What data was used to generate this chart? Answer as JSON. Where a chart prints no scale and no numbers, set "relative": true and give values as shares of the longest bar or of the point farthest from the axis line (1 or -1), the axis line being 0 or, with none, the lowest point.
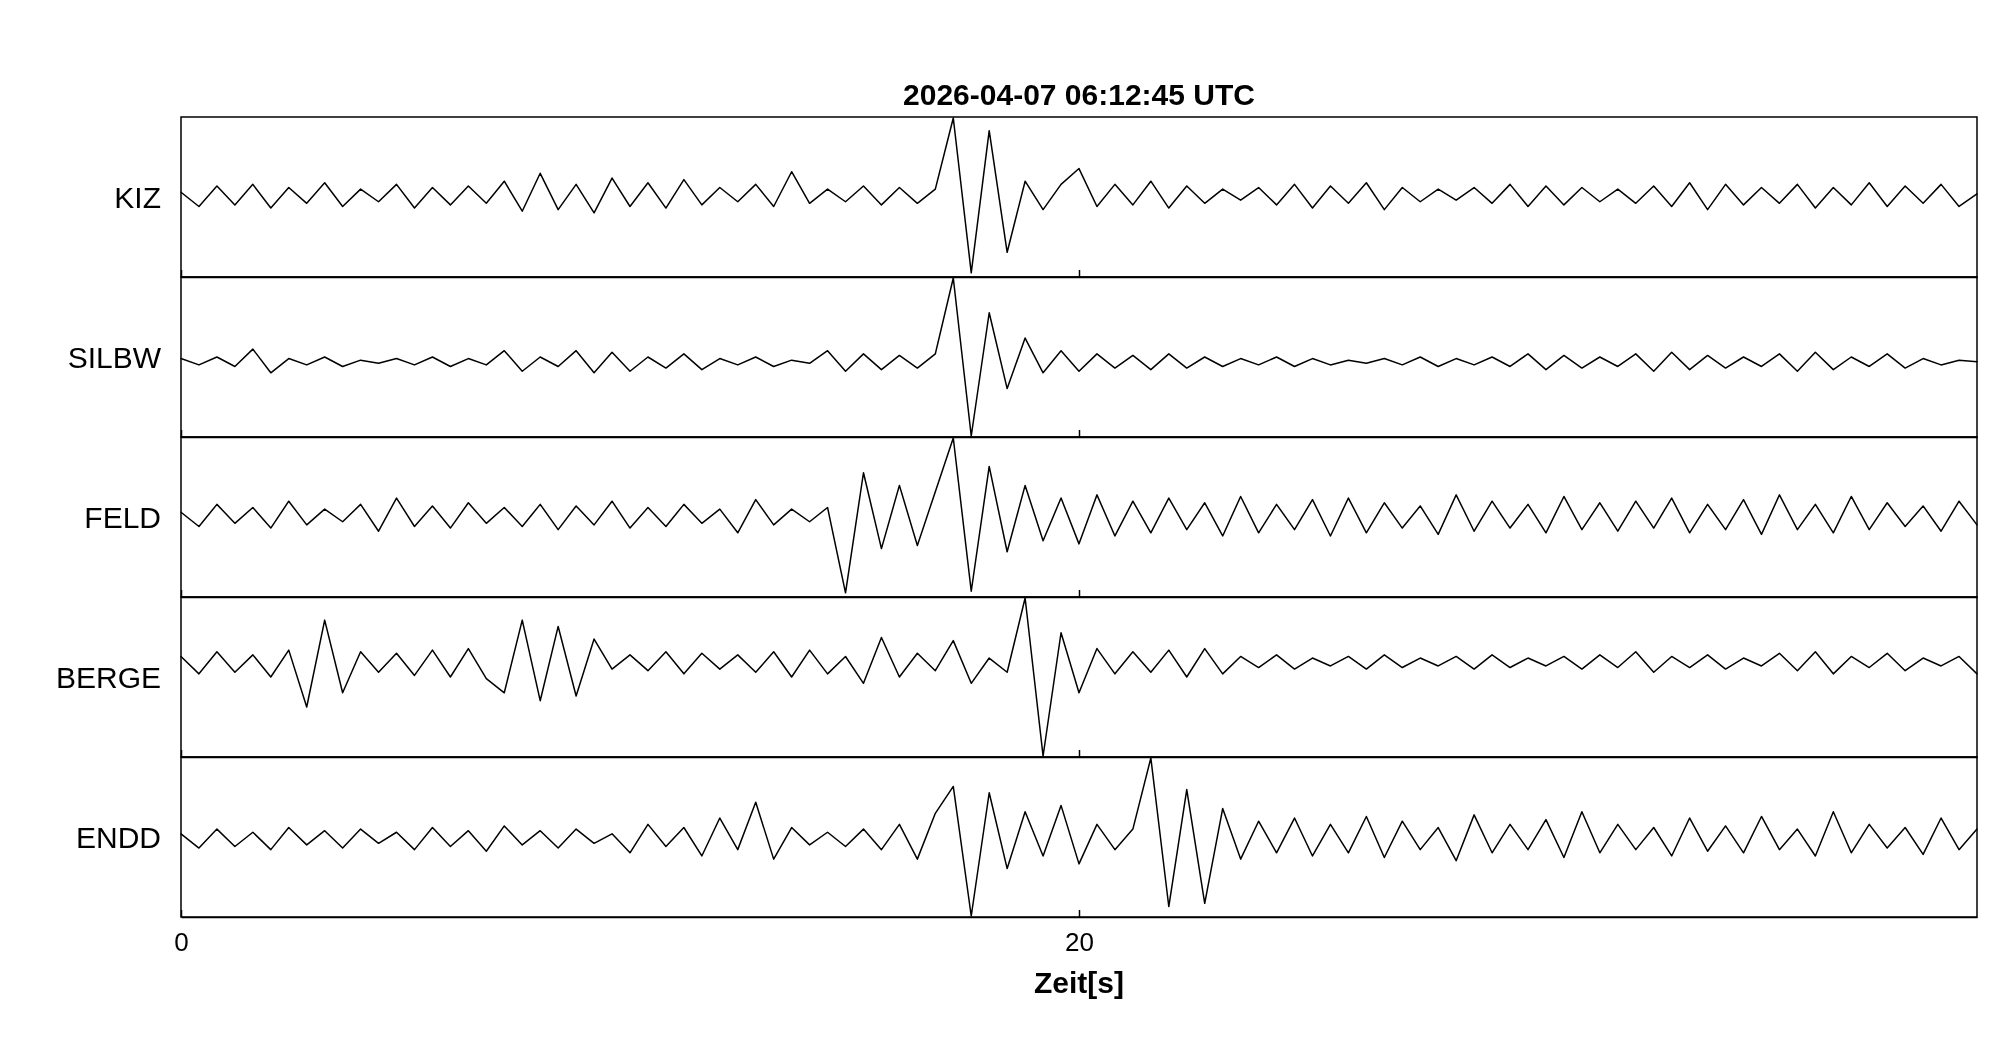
{
  "chart_data": [
    {
      "type": "line",
      "title": "2026-04-07  06:12:45 UTC",
      "ylabel": "KIZ",
      "relative": true,
      "color": "#000000",
      "xlim": [
        0,
        40
      ],
      "tick_labels": false,
      "x": [
        0,
        0.4,
        0.8,
        1.2,
        1.6,
        2,
        2.4,
        2.8,
        3.2,
        3.6,
        4,
        4.4,
        4.8,
        5.2,
        5.6,
        6,
        6.4,
        6.8,
        7.2,
        7.6,
        8,
        8.4,
        8.8,
        9.2,
        9.6,
        10,
        10.4,
        10.8,
        11.2,
        11.6,
        12,
        12.4,
        12.8,
        13.2,
        13.6,
        14,
        14.4,
        14.8,
        15.2,
        15.6,
        16,
        16.4,
        16.8,
        17.2,
        17.6,
        18,
        18.4,
        18.8,
        19.2,
        19.6,
        20,
        20.4,
        20.8,
        21.2,
        21.6,
        22,
        22.4,
        22.8,
        23.2,
        23.6,
        24,
        24.4,
        24.8,
        25.2,
        25.6,
        26,
        26.4,
        26.8,
        27.2,
        27.6,
        28,
        28.4,
        28.8,
        29.2,
        29.6,
        30,
        30.4,
        30.8,
        31.2,
        31.6,
        32,
        32.4,
        32.8,
        33.2,
        33.6,
        34,
        34.4,
        34.8,
        35.2,
        35.6,
        36,
        36.4,
        36.8,
        37.2,
        37.6,
        38,
        38.4,
        38.8,
        39.2,
        39.6,
        40
      ],
      "values": [
        0.53,
        0.44,
        0.57,
        0.45,
        0.58,
        0.43,
        0.56,
        0.46,
        0.59,
        0.44,
        0.55,
        0.47,
        0.58,
        0.43,
        0.56,
        0.45,
        0.57,
        0.46,
        0.6,
        0.41,
        0.65,
        0.42,
        0.58,
        0.4,
        0.62,
        0.44,
        0.59,
        0.43,
        0.61,
        0.45,
        0.56,
        0.47,
        0.58,
        0.44,
        0.66,
        0.46,
        0.55,
        0.47,
        0.57,
        0.45,
        0.56,
        0.46,
        0.55,
        1.0,
        0.02,
        0.92,
        0.15,
        0.6,
        0.42,
        0.58,
        0.68,
        0.44,
        0.58,
        0.45,
        0.6,
        0.43,
        0.57,
        0.46,
        0.55,
        0.48,
        0.56,
        0.45,
        0.58,
        0.43,
        0.57,
        0.46,
        0.59,
        0.42,
        0.56,
        0.47,
        0.55,
        0.48,
        0.56,
        0.46,
        0.58,
        0.44,
        0.57,
        0.45,
        0.56,
        0.47,
        0.55,
        0.46,
        0.57,
        0.44,
        0.59,
        0.42,
        0.58,
        0.45,
        0.56,
        0.46,
        0.58,
        0.43,
        0.56,
        0.45,
        0.59,
        0.44,
        0.57,
        0.46,
        0.58,
        0.44,
        0.52
      ]
    },
    {
      "type": "line",
      "ylabel": "SILBW",
      "relative": true,
      "color": "#000000",
      "xlim": [
        0,
        40
      ],
      "tick_labels": false,
      "x": [
        0,
        0.4,
        0.8,
        1.2,
        1.6,
        2,
        2.4,
        2.8,
        3.2,
        3.6,
        4,
        4.4,
        4.8,
        5.2,
        5.6,
        6,
        6.4,
        6.8,
        7.2,
        7.6,
        8,
        8.4,
        8.8,
        9.2,
        9.6,
        10,
        10.4,
        10.8,
        11.2,
        11.6,
        12,
        12.4,
        12.8,
        13.2,
        13.6,
        14,
        14.4,
        14.8,
        15.2,
        15.6,
        16,
        16.4,
        16.8,
        17.2,
        17.6,
        18,
        18.4,
        18.8,
        19.2,
        19.6,
        20,
        20.4,
        20.8,
        21.2,
        21.6,
        22,
        22.4,
        22.8,
        23.2,
        23.6,
        24,
        24.4,
        24.8,
        25.2,
        25.6,
        26,
        26.4,
        26.8,
        27.2,
        27.6,
        28,
        28.4,
        28.8,
        29.2,
        29.6,
        30,
        30.4,
        30.8,
        31.2,
        31.6,
        32,
        32.4,
        32.8,
        33.2,
        33.6,
        34,
        34.4,
        34.8,
        35.2,
        35.6,
        36,
        36.4,
        36.8,
        37.2,
        37.6,
        38,
        38.4,
        38.8,
        39.2,
        39.6,
        40
      ],
      "values": [
        0.49,
        0.45,
        0.5,
        0.44,
        0.55,
        0.4,
        0.49,
        0.45,
        0.5,
        0.44,
        0.48,
        0.46,
        0.49,
        0.45,
        0.5,
        0.44,
        0.49,
        0.45,
        0.54,
        0.41,
        0.5,
        0.44,
        0.54,
        0.4,
        0.53,
        0.41,
        0.5,
        0.43,
        0.52,
        0.42,
        0.49,
        0.45,
        0.5,
        0.44,
        0.48,
        0.46,
        0.54,
        0.41,
        0.52,
        0.42,
        0.51,
        0.43,
        0.52,
        1.0,
        0.0,
        0.78,
        0.3,
        0.62,
        0.4,
        0.54,
        0.41,
        0.52,
        0.43,
        0.51,
        0.42,
        0.52,
        0.43,
        0.5,
        0.44,
        0.49,
        0.45,
        0.5,
        0.44,
        0.49,
        0.45,
        0.48,
        0.46,
        0.49,
        0.45,
        0.5,
        0.44,
        0.49,
        0.45,
        0.5,
        0.44,
        0.52,
        0.42,
        0.51,
        0.43,
        0.5,
        0.44,
        0.52,
        0.41,
        0.53,
        0.42,
        0.51,
        0.43,
        0.5,
        0.44,
        0.52,
        0.41,
        0.53,
        0.42,
        0.5,
        0.44,
        0.52,
        0.43,
        0.49,
        0.45,
        0.48,
        0.47
      ]
    },
    {
      "type": "line",
      "ylabel": "FELD",
      "relative": true,
      "color": "#000000",
      "xlim": [
        0,
        40
      ],
      "tick_labels": false,
      "x": [
        0,
        0.4,
        0.8,
        1.2,
        1.6,
        2,
        2.4,
        2.8,
        3.2,
        3.6,
        4,
        4.4,
        4.8,
        5.2,
        5.6,
        6,
        6.4,
        6.8,
        7.2,
        7.6,
        8,
        8.4,
        8.8,
        9.2,
        9.6,
        10,
        10.4,
        10.8,
        11.2,
        11.6,
        12,
        12.4,
        12.8,
        13.2,
        13.6,
        14,
        14.4,
        14.8,
        15.2,
        15.6,
        16,
        16.4,
        16.8,
        17.2,
        17.6,
        18,
        18.4,
        18.8,
        19.2,
        19.6,
        20,
        20.4,
        20.8,
        21.2,
        21.6,
        22,
        22.4,
        22.8,
        23.2,
        23.6,
        24,
        24.4,
        24.8,
        25.2,
        25.6,
        26,
        26.4,
        26.8,
        27.2,
        27.6,
        28,
        28.4,
        28.8,
        29.2,
        29.6,
        30,
        30.4,
        30.8,
        31.2,
        31.6,
        32,
        32.4,
        32.8,
        33.2,
        33.6,
        34,
        34.4,
        34.8,
        35.2,
        35.6,
        36,
        36.4,
        36.8,
        37.2,
        37.6,
        38,
        38.4,
        38.8,
        39.2,
        39.6,
        40
      ],
      "values": [
        0.53,
        0.44,
        0.58,
        0.46,
        0.56,
        0.43,
        0.6,
        0.45,
        0.55,
        0.47,
        0.58,
        0.41,
        0.62,
        0.44,
        0.57,
        0.43,
        0.59,
        0.46,
        0.56,
        0.44,
        0.58,
        0.42,
        0.57,
        0.45,
        0.6,
        0.43,
        0.56,
        0.44,
        0.58,
        0.46,
        0.55,
        0.4,
        0.61,
        0.45,
        0.55,
        0.47,
        0.56,
        0.02,
        0.78,
        0.3,
        0.7,
        0.32,
        0.66,
        1.0,
        0.03,
        0.82,
        0.28,
        0.7,
        0.35,
        0.62,
        0.33,
        0.64,
        0.38,
        0.6,
        0.4,
        0.62,
        0.42,
        0.59,
        0.38,
        0.63,
        0.4,
        0.58,
        0.42,
        0.61,
        0.38,
        0.62,
        0.4,
        0.59,
        0.43,
        0.57,
        0.39,
        0.64,
        0.41,
        0.6,
        0.43,
        0.58,
        0.4,
        0.63,
        0.42,
        0.59,
        0.41,
        0.6,
        0.43,
        0.62,
        0.4,
        0.58,
        0.42,
        0.61,
        0.39,
        0.64,
        0.42,
        0.58,
        0.4,
        0.63,
        0.42,
        0.59,
        0.44,
        0.57,
        0.41,
        0.6,
        0.45
      ]
    },
    {
      "type": "line",
      "ylabel": "BERGE",
      "relative": true,
      "color": "#000000",
      "xlim": [
        0,
        40
      ],
      "tick_labels": false,
      "x": [
        0,
        0.4,
        0.8,
        1.2,
        1.6,
        2,
        2.4,
        2.8,
        3.2,
        3.6,
        4,
        4.4,
        4.8,
        5.2,
        5.6,
        6,
        6.4,
        6.8,
        7.2,
        7.6,
        8,
        8.4,
        8.8,
        9.2,
        9.6,
        10,
        10.4,
        10.8,
        11.2,
        11.6,
        12,
        12.4,
        12.8,
        13.2,
        13.6,
        14,
        14.4,
        14.8,
        15.2,
        15.6,
        16,
        16.4,
        16.8,
        17.2,
        17.6,
        18,
        18.4,
        18.8,
        19.2,
        19.6,
        20,
        20.4,
        20.8,
        21.2,
        21.6,
        22,
        22.4,
        22.8,
        23.2,
        23.6,
        24,
        24.4,
        24.8,
        25.2,
        25.6,
        26,
        26.4,
        26.8,
        27.2,
        27.6,
        28,
        28.4,
        28.8,
        29.2,
        29.6,
        30,
        30.4,
        30.8,
        31.2,
        31.6,
        32,
        32.4,
        32.8,
        33.2,
        33.6,
        34,
        34.4,
        34.8,
        35.2,
        35.6,
        36,
        36.4,
        36.8,
        37.2,
        37.6,
        38,
        38.4,
        38.8,
        39.2,
        39.6,
        40
      ],
      "values": [
        0.63,
        0.52,
        0.66,
        0.53,
        0.64,
        0.5,
        0.67,
        0.31,
        0.86,
        0.4,
        0.66,
        0.53,
        0.65,
        0.51,
        0.67,
        0.5,
        0.68,
        0.49,
        0.4,
        0.86,
        0.35,
        0.82,
        0.38,
        0.74,
        0.55,
        0.64,
        0.54,
        0.66,
        0.52,
        0.65,
        0.55,
        0.64,
        0.53,
        0.66,
        0.5,
        0.67,
        0.52,
        0.63,
        0.46,
        0.75,
        0.5,
        0.65,
        0.54,
        0.73,
        0.46,
        0.62,
        0.53,
        1.0,
        0.0,
        0.78,
        0.4,
        0.68,
        0.52,
        0.66,
        0.53,
        0.67,
        0.5,
        0.68,
        0.52,
        0.63,
        0.56,
        0.64,
        0.55,
        0.62,
        0.57,
        0.63,
        0.55,
        0.64,
        0.56,
        0.62,
        0.57,
        0.63,
        0.55,
        0.64,
        0.56,
        0.62,
        0.57,
        0.63,
        0.55,
        0.64,
        0.56,
        0.66,
        0.53,
        0.63,
        0.56,
        0.64,
        0.55,
        0.62,
        0.57,
        0.65,
        0.54,
        0.66,
        0.52,
        0.63,
        0.56,
        0.65,
        0.54,
        0.62,
        0.57,
        0.63,
        0.52
      ]
    },
    {
      "type": "line",
      "ylabel": "ENDD",
      "xlabel": "Zeit[s]",
      "relative": true,
      "color": "#000000",
      "xlim": [
        0,
        40
      ],
      "xticks": [
        0,
        20
      ],
      "tick_labels": "x",
      "x": [
        0,
        0.4,
        0.8,
        1.2,
        1.6,
        2,
        2.4,
        2.8,
        3.2,
        3.6,
        4,
        4.4,
        4.8,
        5.2,
        5.6,
        6,
        6.4,
        6.8,
        7.2,
        7.6,
        8,
        8.4,
        8.8,
        9.2,
        9.6,
        10,
        10.4,
        10.8,
        11.2,
        11.6,
        12,
        12.4,
        12.8,
        13.2,
        13.6,
        14,
        14.4,
        14.8,
        15.2,
        15.6,
        16,
        16.4,
        16.8,
        17.2,
        17.6,
        18,
        18.4,
        18.8,
        19.2,
        19.6,
        20,
        20.4,
        20.8,
        21.2,
        21.6,
        22,
        22.4,
        22.8,
        23.2,
        23.6,
        24,
        24.4,
        24.8,
        25.2,
        25.6,
        26,
        26.4,
        26.8,
        27.2,
        27.6,
        28,
        28.4,
        28.8,
        29.2,
        29.6,
        30,
        30.4,
        30.8,
        31.2,
        31.6,
        32,
        32.4,
        32.8,
        33.2,
        33.6,
        34,
        34.4,
        34.8,
        35.2,
        35.6,
        36,
        36.4,
        36.8,
        37.2,
        37.6,
        38,
        38.4,
        38.8,
        39.2,
        39.6,
        40
      ],
      "values": [
        0.52,
        0.43,
        0.55,
        0.44,
        0.53,
        0.42,
        0.56,
        0.45,
        0.54,
        0.43,
        0.55,
        0.46,
        0.53,
        0.42,
        0.56,
        0.44,
        0.54,
        0.41,
        0.57,
        0.45,
        0.54,
        0.43,
        0.55,
        0.46,
        0.52,
        0.4,
        0.58,
        0.44,
        0.56,
        0.38,
        0.62,
        0.42,
        0.72,
        0.36,
        0.56,
        0.45,
        0.53,
        0.44,
        0.55,
        0.42,
        0.58,
        0.36,
        0.65,
        0.82,
        0.0,
        0.78,
        0.3,
        0.66,
        0.38,
        0.7,
        0.33,
        0.58,
        0.42,
        0.55,
        1.0,
        0.06,
        0.8,
        0.08,
        0.68,
        0.36,
        0.6,
        0.4,
        0.62,
        0.38,
        0.58,
        0.4,
        0.63,
        0.37,
        0.6,
        0.42,
        0.56,
        0.35,
        0.64,
        0.4,
        0.58,
        0.42,
        0.61,
        0.37,
        0.66,
        0.4,
        0.58,
        0.42,
        0.56,
        0.38,
        0.62,
        0.41,
        0.57,
        0.4,
        0.63,
        0.42,
        0.55,
        0.38,
        0.66,
        0.4,
        0.58,
        0.43,
        0.56,
        0.39,
        0.62,
        0.42,
        0.55
      ]
    }
  ]
}
